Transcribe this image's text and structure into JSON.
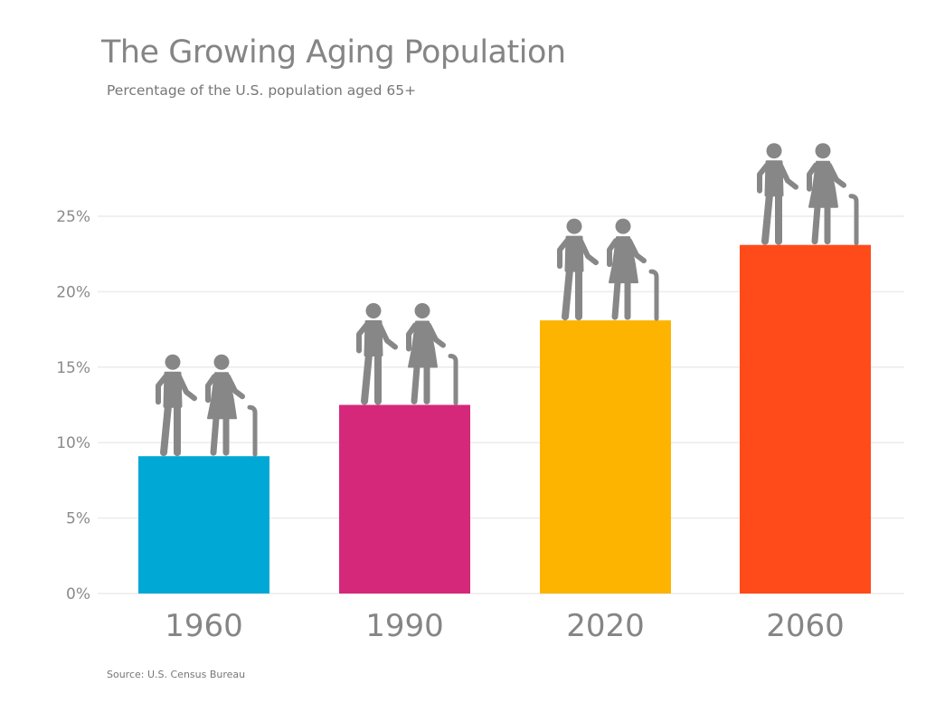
{
  "chart_data": {
    "type": "bar",
    "title": "The Growing Aging Population",
    "subtitle": "Percentage of the U.S. population aged 65+",
    "source": "Source: U.S. Census Bureau",
    "categories": [
      "1960",
      "1990",
      "2020",
      "2060"
    ],
    "values": [
      9.1,
      12.5,
      18.1,
      23.1
    ],
    "colors": [
      "#00A8D6",
      "#D6287A",
      "#FDB400",
      "#FF4B1A"
    ],
    "icon": "elderly-couple-icon",
    "icon_color": "#878787",
    "ylim": [
      0,
      25
    ],
    "yticks": [
      0,
      5,
      10,
      15,
      20,
      25
    ],
    "ytick_labels": [
      "0%",
      "5%",
      "10%",
      "15%",
      "20%",
      "25%"
    ],
    "grid": true,
    "xlabel": "",
    "ylabel": ""
  }
}
